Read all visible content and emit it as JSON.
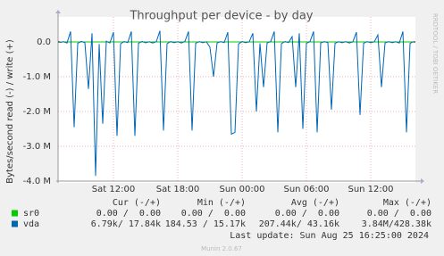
{
  "chart_data": {
    "type": "line",
    "title": "Throughput per device - by day",
    "y_label": "Bytes/second read (-) / write (+)",
    "side_label": "RRDTOOL / TOBI OETIKER",
    "categories": [
      null,
      null,
      null,
      null,
      null,
      null,
      null,
      null,
      null,
      null,
      null,
      null,
      null,
      null,
      null,
      "Sat 12:00",
      null,
      null,
      null,
      null,
      null,
      null,
      null,
      null,
      null,
      null,
      null,
      null,
      null,
      null,
      null,
      null,
      null,
      "Sat 18:00",
      null,
      null,
      null,
      null,
      null,
      null,
      null,
      null,
      null,
      null,
      null,
      null,
      null,
      null,
      null,
      null,
      null,
      "Sun 00:00",
      null,
      null,
      null,
      null,
      null,
      null,
      null,
      null,
      null,
      null,
      null,
      null,
      null,
      null,
      null,
      null,
      null,
      "Sun 06:00",
      null,
      null,
      null,
      null,
      null,
      null,
      null,
      null,
      null,
      null,
      null,
      null,
      null,
      null,
      null,
      null,
      null,
      "Sun 12:00",
      null,
      null,
      null,
      null,
      null,
      null,
      null,
      null,
      null,
      null,
      null,
      null
    ],
    "series": [
      {
        "name": "sr0",
        "color": "#00cc00",
        "values": [
          0,
          0,
          0,
          0,
          0,
          0,
          0,
          0,
          0,
          0,
          0,
          0,
          0,
          0,
          0,
          0,
          0,
          0,
          0,
          0,
          0,
          0,
          0,
          0,
          0,
          0,
          0,
          0,
          0,
          0,
          0,
          0,
          0,
          0,
          0,
          0,
          0,
          0,
          0,
          0,
          0,
          0,
          0,
          0,
          0,
          0,
          0,
          0,
          0,
          0,
          0,
          0,
          0,
          0,
          0,
          0,
          0,
          0,
          0,
          0,
          0,
          0,
          0,
          0,
          0,
          0,
          0,
          0,
          0,
          0,
          0,
          0,
          0,
          0,
          0,
          0,
          0,
          0,
          0,
          0,
          0,
          0,
          0,
          0,
          0,
          0,
          0,
          0,
          0,
          0,
          0,
          0,
          0,
          0,
          0,
          0,
          0,
          0,
          0,
          0
        ]
      },
      {
        "name": "vda",
        "color": "#0066b3",
        "values": [
          -20000,
          10000,
          -30000,
          300000,
          -2450000,
          -40000,
          15000,
          -20000,
          -1350000,
          250000,
          -3850000,
          -60000,
          -2350000,
          20000,
          -30000,
          280000,
          -2700000,
          -50000,
          10000,
          -20000,
          300000,
          -2700000,
          -40000,
          15000,
          -25000,
          5000,
          -30000,
          10000,
          320000,
          -2550000,
          -50000,
          10000,
          -20000,
          5000,
          -30000,
          15000,
          300000,
          -2550000,
          -40000,
          10000,
          -20000,
          5000,
          -150000,
          -1000000,
          -30000,
          10000,
          -20000,
          280000,
          -2650000,
          -2600000,
          -60000,
          10000,
          -20000,
          5000,
          250000,
          -2000000,
          -40000,
          -1300000,
          -30000,
          10000,
          300000,
          -2600000,
          -50000,
          10000,
          -20000,
          150000,
          -1300000,
          250000,
          -2500000,
          -40000,
          10000,
          300000,
          -2600000,
          -30000,
          10000,
          -20000,
          -1950000,
          -40000,
          5000,
          -20000,
          10000,
          -30000,
          5000,
          280000,
          -2100000,
          -40000,
          10000,
          -20000,
          5000,
          200000,
          -1300000,
          -30000,
          10000,
          -20000,
          5000,
          -30000,
          300000,
          -2600000,
          -40000,
          10000
        ]
      }
    ],
    "ylim": [
      -4000000,
      300000
    ],
    "yticks": [
      {
        "value": 0,
        "label": "0.0"
      },
      {
        "value": -1000000,
        "label": "-1.0 M"
      },
      {
        "value": -2000000,
        "label": "-2.0 M"
      },
      {
        "value": -3000000,
        "label": "-3.0 M"
      },
      {
        "value": -4000000,
        "label": "-4.0 M"
      }
    ],
    "grid": true,
    "legend_table": {
      "headers": [
        "Cur (-/+)",
        "Min (-/+)",
        "Avg (-/+)",
        "Max (-/+)"
      ],
      "rows": [
        [
          "0.00 /  0.00",
          "0.00 /  0.00",
          "0.00 /  0.00",
          "0.00 /  0.00"
        ],
        [
          "6.79k/ 17.84k",
          "184.53 / 15.17k",
          "207.44k/ 43.16k",
          "3.84M/428.38k"
        ]
      ]
    },
    "last_update": "Last update: Sun Aug 25 16:25:00 2024",
    "footer": "Munin 2.0.67"
  }
}
